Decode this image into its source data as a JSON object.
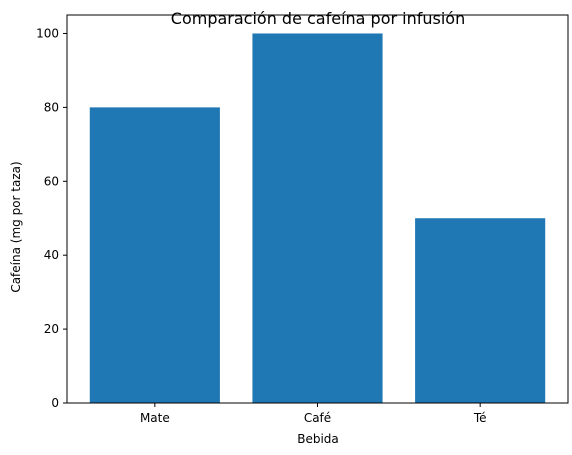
{
  "chart_data": {
    "type": "bar",
    "title": "Comparación de cafeína por infusión",
    "xlabel": "Bebida",
    "ylabel": "Cafeína (mg por taza)",
    "categories": [
      "Mate",
      "Café",
      "Té"
    ],
    "values": [
      80,
      100,
      50
    ],
    "ylim": [
      0,
      105
    ],
    "yticks": [
      0,
      20,
      40,
      60,
      80,
      100
    ],
    "bar_color": "#1f77b4",
    "grid": false,
    "legend": "none"
  }
}
